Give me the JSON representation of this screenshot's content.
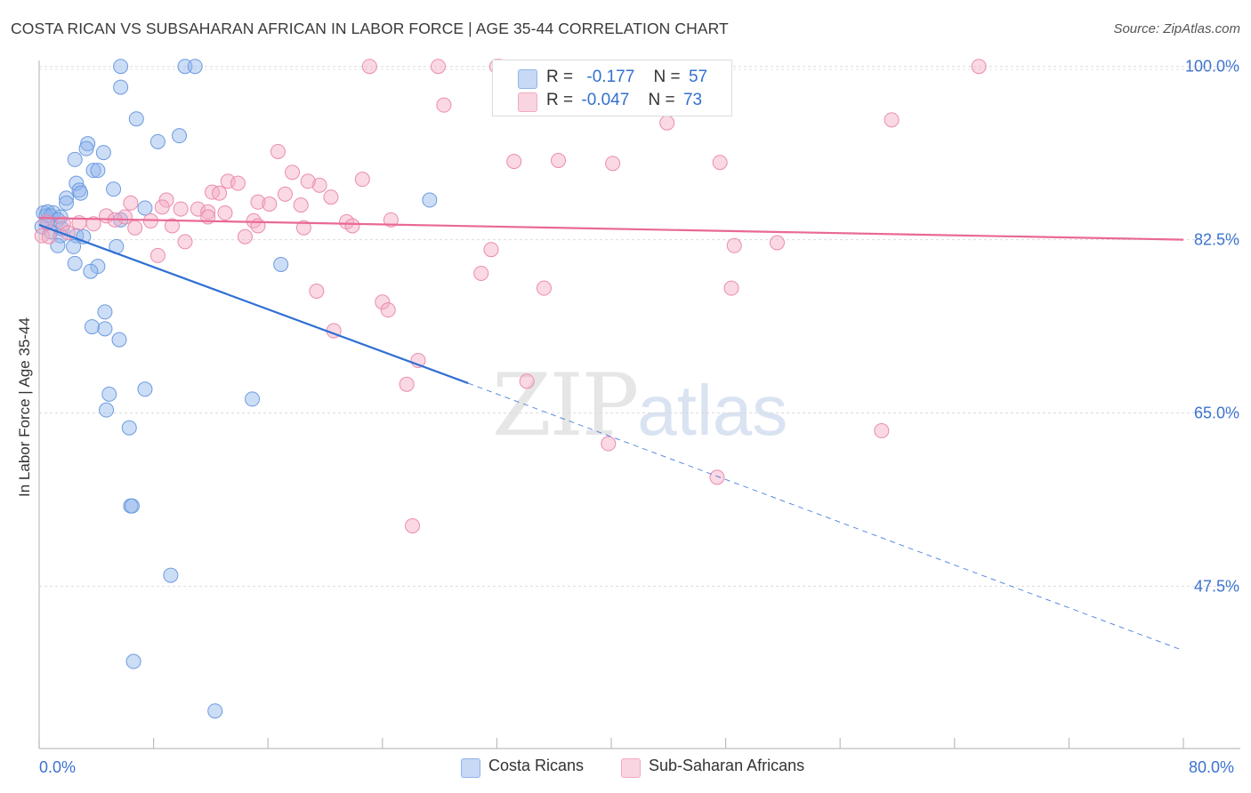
{
  "header": {
    "title": "COSTA RICAN VS SUBSAHARAN AFRICAN IN LABOR FORCE | AGE 35-44 CORRELATION CHART",
    "source": "Source: ZipAtlas.com"
  },
  "watermark": {
    "zip": "ZIP",
    "atlas": "atlas"
  },
  "legend_top": {
    "rows": [
      {
        "r_label": "R =",
        "r_value": "-0.177",
        "n_label": "N =",
        "n_value": "57",
        "color": "#8fb4ea"
      },
      {
        "r_label": "R =",
        "r_value": "-0.047",
        "n_label": "N =",
        "n_value": "73",
        "color": "#f3aac3"
      }
    ]
  },
  "legend_bottom": {
    "items": [
      {
        "label": "Costa Ricans",
        "color": "#8fb4ea"
      },
      {
        "label": "Sub-Saharan Africans",
        "color": "#f3aac3"
      }
    ]
  },
  "chart_data": {
    "type": "scatter",
    "title": "COSTA RICAN VS SUBSAHARAN AFRICAN IN LABOR FORCE | AGE 35-44 CORRELATION CHART",
    "xlabel": "",
    "ylabel": "In Labor Force | Age 35-44",
    "xlim": [
      0,
      80
    ],
    "ylim": [
      32.0,
      101.5
    ],
    "x_tick_labels": [
      "0.0%",
      "80.0%"
    ],
    "y_tick_values": [
      47.5,
      65.0,
      82.5,
      100.0
    ],
    "y_tick_labels": [
      "47.5%",
      "65.0%",
      "82.5%",
      "100.0%"
    ],
    "grid": "horizontal dashed",
    "legend": "top-center",
    "series": [
      {
        "name": "Costa Ricans",
        "color": "#8fb4ea",
        "stroke": "#6d9be0",
        "trend": {
          "r": -0.177,
          "n": 57,
          "x0": 0.0,
          "y0": 84.0,
          "x_solid_end": 30.0,
          "y_solid_end": 68.0,
          "x1": 80.0,
          "y1": 41.0,
          "color": "#2f6fd4"
        },
        "points": [
          [
            5.7,
            100.0
          ],
          [
            10.2,
            100.0
          ],
          [
            10.9,
            100.0
          ],
          [
            5.7,
            97.9
          ],
          [
            6.8,
            94.7
          ],
          [
            9.8,
            93.0
          ],
          [
            8.3,
            92.4
          ],
          [
            3.4,
            92.2
          ],
          [
            3.3,
            91.7
          ],
          [
            4.5,
            91.3
          ],
          [
            2.5,
            90.6
          ],
          [
            3.8,
            89.5
          ],
          [
            4.1,
            89.5
          ],
          [
            2.6,
            88.2
          ],
          [
            5.2,
            87.6
          ],
          [
            2.8,
            87.5
          ],
          [
            2.9,
            87.2
          ],
          [
            1.9,
            86.7
          ],
          [
            1.9,
            86.2
          ],
          [
            27.3,
            86.5
          ],
          [
            7.4,
            85.7
          ],
          [
            0.3,
            85.2
          ],
          [
            0.6,
            85.3
          ],
          [
            1.0,
            85.2
          ],
          [
            0.5,
            84.9
          ],
          [
            0.8,
            84.9
          ],
          [
            1.5,
            84.8
          ],
          [
            1.3,
            84.5
          ],
          [
            5.7,
            84.5
          ],
          [
            0.6,
            84.2
          ],
          [
            0.2,
            83.8
          ],
          [
            1.6,
            83.6
          ],
          [
            0.8,
            83.3
          ],
          [
            1.5,
            82.9
          ],
          [
            2.6,
            82.9
          ],
          [
            3.1,
            82.8
          ],
          [
            1.3,
            81.9
          ],
          [
            2.4,
            81.8
          ],
          [
            5.4,
            81.8
          ],
          [
            16.9,
            80.0
          ],
          [
            2.5,
            80.1
          ],
          [
            4.1,
            79.8
          ],
          [
            3.6,
            79.3
          ],
          [
            4.6,
            75.2
          ],
          [
            3.7,
            73.7
          ],
          [
            4.6,
            73.5
          ],
          [
            5.6,
            72.4
          ],
          [
            7.4,
            67.4
          ],
          [
            4.9,
            66.9
          ],
          [
            4.7,
            65.3
          ],
          [
            14.9,
            66.4
          ],
          [
            6.3,
            63.5
          ],
          [
            6.4,
            55.6
          ],
          [
            6.5,
            55.6
          ],
          [
            9.2,
            48.6
          ],
          [
            6.6,
            39.9
          ],
          [
            12.3,
            34.9
          ]
        ]
      },
      {
        "name": "Sub-Saharan Africans",
        "color": "#f3aac3",
        "stroke": "#eb8cad",
        "trend": {
          "r": -0.047,
          "n": 73,
          "x0": 0.0,
          "y0": 84.7,
          "x1": 80.0,
          "y1": 82.5,
          "color": "#e96996"
        },
        "points": [
          [
            23.1,
            100.0
          ],
          [
            27.9,
            100.0
          ],
          [
            32.0,
            100.0
          ],
          [
            32.2,
            100.0
          ],
          [
            65.7,
            100.0
          ],
          [
            28.3,
            96.1
          ],
          [
            59.6,
            94.6
          ],
          [
            43.9,
            94.3
          ],
          [
            16.7,
            91.4
          ],
          [
            33.2,
            90.4
          ],
          [
            40.1,
            90.2
          ],
          [
            17.7,
            89.3
          ],
          [
            22.6,
            88.6
          ],
          [
            13.2,
            88.4
          ],
          [
            13.9,
            88.2
          ],
          [
            19.6,
            88.0
          ],
          [
            12.1,
            87.3
          ],
          [
            12.6,
            87.2
          ],
          [
            17.2,
            87.1
          ],
          [
            20.4,
            86.8
          ],
          [
            8.9,
            86.5
          ],
          [
            15.3,
            86.3
          ],
          [
            16.1,
            86.1
          ],
          [
            18.3,
            86.0
          ],
          [
            6.4,
            86.2
          ],
          [
            8.6,
            85.8
          ],
          [
            9.9,
            85.6
          ],
          [
            11.1,
            85.6
          ],
          [
            11.8,
            85.3
          ],
          [
            13.0,
            85.2
          ],
          [
            4.7,
            84.9
          ],
          [
            6.0,
            84.8
          ],
          [
            5.3,
            84.5
          ],
          [
            7.8,
            84.4
          ],
          [
            15.0,
            84.4
          ],
          [
            24.6,
            84.5
          ],
          [
            21.5,
            84.3
          ],
          [
            0.5,
            84.3
          ],
          [
            3.8,
            84.1
          ],
          [
            2.8,
            84.2
          ],
          [
            1.7,
            84.1
          ],
          [
            15.3,
            83.9
          ],
          [
            6.7,
            83.7
          ],
          [
            9.3,
            83.9
          ],
          [
            18.5,
            83.7
          ],
          [
            21.9,
            83.9
          ],
          [
            2.0,
            83.2
          ],
          [
            0.2,
            82.9
          ],
          [
            0.7,
            82.8
          ],
          [
            14.4,
            82.8
          ],
          [
            10.2,
            82.3
          ],
          [
            51.6,
            82.2
          ],
          [
            48.6,
            81.9
          ],
          [
            31.6,
            81.5
          ],
          [
            8.3,
            80.9
          ],
          [
            30.9,
            79.1
          ],
          [
            35.3,
            77.6
          ],
          [
            19.4,
            77.3
          ],
          [
            48.4,
            77.6
          ],
          [
            24.0,
            76.2
          ],
          [
            24.4,
            75.4
          ],
          [
            20.6,
            73.3
          ],
          [
            26.5,
            70.3
          ],
          [
            34.1,
            68.2
          ],
          [
            25.7,
            67.9
          ],
          [
            47.4,
            58.5
          ],
          [
            58.9,
            63.2
          ],
          [
            26.1,
            53.6
          ],
          [
            47.6,
            90.3
          ],
          [
            36.3,
            90.5
          ],
          [
            39.8,
            61.9
          ],
          [
            18.8,
            88.4
          ],
          [
            11.8,
            84.8
          ]
        ]
      }
    ]
  }
}
